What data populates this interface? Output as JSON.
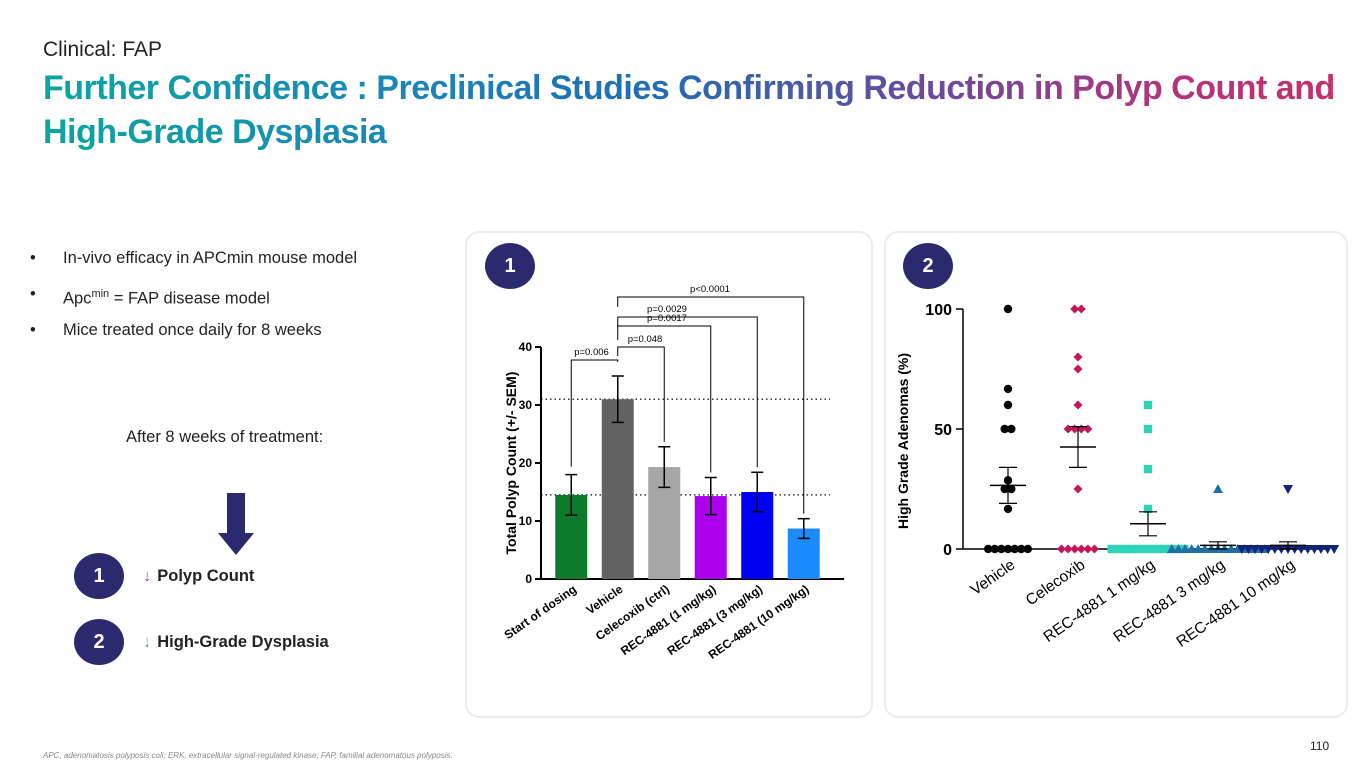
{
  "header": {
    "supertitle": "Clinical: FAP",
    "title": "Further Confidence : Preclinical Studies Confirming Reduction in Polyp Count and High-Grade Dysplasia"
  },
  "bullets": {
    "b1": "In-vivo efficacy in APCmin mouse model",
    "b2_pre": "Apc",
    "b2_sup": "min",
    "b2_post": " = FAP disease model",
    "b3": "Mice treated once daily for 8 weeks"
  },
  "after_text": "After 8 weeks of treatment:",
  "outcomes": [
    {
      "num": "1",
      "arrow": "↓",
      "label": "Polyp Count",
      "arrow_color": "#a63fd6"
    },
    {
      "num": "2",
      "arrow": "↓",
      "label": "High-Grade Dysplasia",
      "arrow_color": "#3fb5b5"
    }
  ],
  "panel_labels": {
    "p1": "1",
    "p2": "2"
  },
  "footnote": "APC, adenomatosis polyposis coli; ERK, extracellular signal-regulated kinase; FAP, familial adenomatous polyposis.",
  "page_number": "110",
  "chart_data": [
    {
      "type": "bar",
      "ylabel": "Total Polyp Count (+/- SEM)",
      "ylim": [
        0,
        40
      ],
      "yticks": [
        "0",
        "10",
        "20",
        "30",
        "40"
      ],
      "categories": [
        "Start of dosing",
        "Vehicle",
        "Celecoxib (ctrl)",
        "REC-4881 (1 mg/kg)",
        "REC-4881 (3 mg/kg)",
        "REC-4881 (10 mg/kg)"
      ],
      "values": [
        14.5,
        31,
        19.3,
        14.3,
        15,
        8.7
      ],
      "sem": [
        3.5,
        4,
        3.5,
        3.2,
        3.4,
        1.7
      ],
      "colors": [
        "#0d7a2b",
        "#626262",
        "#a6a6a6",
        "#aa00ee",
        "#0000f0",
        "#1a8cff"
      ],
      "reference_lines": [
        31,
        14.5
      ],
      "comparisons": [
        {
          "label": "p=0.006",
          "from": 0,
          "to": 1
        },
        {
          "label": "p=0.048",
          "from": 1,
          "to": 2
        },
        {
          "label": "p=0.0017",
          "from": 1,
          "to": 3
        },
        {
          "label": "p=0.0029",
          "from": 1,
          "to": 4
        },
        {
          "label": "p<0.0001",
          "from": 1,
          "to": 5
        }
      ]
    },
    {
      "type": "scatter",
      "ylabel": "High Grade Adenomas (%)",
      "ylim": [
        0,
        100
      ],
      "yticks": [
        "0",
        "50",
        "100"
      ],
      "categories": [
        "Vehicle",
        "Celecoxib",
        "REC-4881 1 mg/kg",
        "REC-4881 3 mg/kg",
        "REC-4881 10 mg/kg"
      ],
      "series": [
        {
          "marker": "circle",
          "color": "#000000",
          "mean": 26.5,
          "sem": 7.5,
          "points": [
            100,
            66.7,
            60,
            50,
            50,
            28.6,
            25,
            25,
            16.7,
            0,
            0,
            0,
            0,
            0,
            0,
            0
          ]
        },
        {
          "marker": "diamond",
          "color": "#c2185b",
          "mean": 42.5,
          "sem": 8.5,
          "points": [
            100,
            100,
            80,
            75,
            60,
            50,
            50,
            50,
            50,
            25,
            0,
            0,
            0,
            0,
            0,
            0
          ]
        },
        {
          "marker": "square",
          "color": "#2fd3b8",
          "mean": 10.5,
          "sem": 5,
          "points": [
            60,
            50,
            33.3,
            16.7,
            0,
            0,
            0,
            0,
            0,
            0,
            0,
            0,
            0,
            0,
            0,
            0
          ]
        },
        {
          "marker": "triangle-up",
          "color": "#1f6fa8",
          "mean": 1.5,
          "sem": 1.5,
          "points": [
            25,
            0,
            0,
            0,
            0,
            0,
            0,
            0,
            0,
            0,
            0,
            0,
            0,
            0,
            0,
            0
          ]
        },
        {
          "marker": "triangle-down",
          "color": "#12237a",
          "mean": 1.5,
          "sem": 1.5,
          "points": [
            25,
            0,
            0,
            0,
            0,
            0,
            0,
            0,
            0,
            0,
            0,
            0,
            0,
            0,
            0,
            0
          ]
        }
      ]
    }
  ]
}
